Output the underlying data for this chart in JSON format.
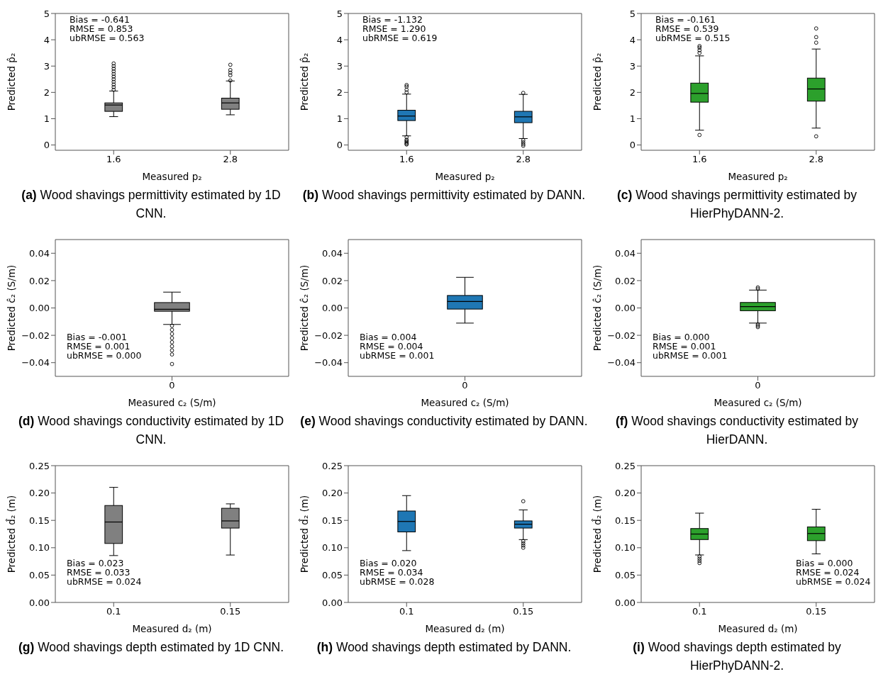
{
  "chart_data": [
    {
      "type": "box",
      "title": "(a) Wood shavings permittivity estimated by 1D CNN.",
      "xlabel": "Measured p₂",
      "ylabel": "Predicted p̂₂",
      "categories": [
        "1.6",
        "2.8"
      ],
      "color": "#808080",
      "ylim": [
        -0.2,
        5
      ],
      "yticks": [
        0,
        1,
        2,
        3,
        4,
        5
      ],
      "boxes": [
        {
          "low": 1.08,
          "q1": 1.28,
          "median": 1.52,
          "q3": 1.6,
          "high": 2.05,
          "outliers": [
            2.1,
            2.2,
            2.3,
            2.4,
            2.5,
            2.6,
            2.7,
            2.8,
            2.9,
            3.0,
            3.1
          ]
        },
        {
          "low": 1.15,
          "q1": 1.36,
          "median": 1.6,
          "q3": 1.78,
          "high": 2.43,
          "outliers": [
            2.45,
            2.65,
            2.75,
            2.85,
            3.05
          ]
        }
      ],
      "annotations": [
        "Bias = -0.641",
        "RMSE = 0.853",
        "ubRMSE = 0.563"
      ]
    },
    {
      "type": "box",
      "title": "(b) Wood shavings permittivity estimated by DANN.",
      "xlabel": "Measured p₂",
      "ylabel": "Predicted p̂₂",
      "categories": [
        "1.6",
        "2.8"
      ],
      "color": "#1f77b4",
      "ylim": [
        -0.2,
        5
      ],
      "yticks": [
        0,
        1,
        2,
        3,
        4,
        5
      ],
      "boxes": [
        {
          "low": 0.35,
          "q1": 0.93,
          "median": 1.1,
          "q3": 1.32,
          "high": 1.93,
          "outliers": [
            2.0,
            2.1,
            2.22,
            2.28,
            0.3,
            0.2,
            0.15,
            0.1,
            0.05,
            0.02
          ]
        },
        {
          "low": 0.25,
          "q1": 0.85,
          "median": 1.07,
          "q3": 1.28,
          "high": 1.92,
          "outliers": [
            1.98,
            0.18,
            0.1,
            0.03,
            -0.03
          ]
        }
      ],
      "annotations": [
        "Bias = -1.132",
        "RMSE = 1.290",
        "ubRMSE = 0.619"
      ]
    },
    {
      "type": "box",
      "title": "(c) Wood shavings permittivity estimated by HierPhyDANN-2.",
      "xlabel": "Measured p₂",
      "ylabel": "Predicted p̂₂",
      "categories": [
        "1.6",
        "2.8"
      ],
      "color": "#2ca02c",
      "ylim": [
        -0.2,
        5
      ],
      "yticks": [
        0,
        1,
        2,
        3,
        4,
        5
      ],
      "boxes": [
        {
          "low": 0.57,
          "q1": 1.63,
          "median": 1.96,
          "q3": 2.35,
          "high": 3.38,
          "outliers": [
            3.5,
            3.6,
            3.7,
            3.76,
            0.38
          ]
        },
        {
          "low": 0.65,
          "q1": 1.67,
          "median": 2.13,
          "q3": 2.54,
          "high": 3.64,
          "outliers": [
            3.89,
            4.1,
            4.43,
            0.33
          ]
        }
      ],
      "annotations": [
        "Bias = -0.161",
        "RMSE = 0.539",
        "ubRMSE = 0.515"
      ]
    },
    {
      "type": "box",
      "title": "(d) Wood shavings conductivity estimated by 1D CNN.",
      "xlabel": "Measured c₂ (S/m)",
      "ylabel": "Predicted ĉ₂ (S/m)",
      "categories": [
        "0"
      ],
      "color": "#808080",
      "ylim": [
        -0.05,
        0.05
      ],
      "yticks": [
        {
          "value": -0.04,
          "label": "−0.04"
        },
        {
          "value": -0.02,
          "label": "−0.02"
        },
        {
          "value": 0,
          "label": "0.00"
        },
        {
          "value": 0.02,
          "label": "0.02"
        },
        {
          "value": 0.04,
          "label": "0.04"
        }
      ],
      "boxes": [
        {
          "low": -0.012,
          "q1": -0.0024,
          "median": -0.001,
          "q3": 0.0039,
          "high": 0.0115,
          "outliers": [
            -0.013,
            -0.016,
            -0.019,
            -0.022,
            -0.025,
            -0.028,
            -0.031,
            -0.034,
            -0.041
          ]
        }
      ],
      "annotations": [
        "Bias = -0.001",
        "RMSE = 0.001",
        "ubRMSE = 0.000"
      ]
    },
    {
      "type": "box",
      "title": "(e) Wood shavings conductivity estimated by DANN.",
      "xlabel": "Measured c₂ (S/m)",
      "ylabel": "Predicted ĉ₂ (S/m)",
      "categories": [
        "0"
      ],
      "color": "#1f77b4",
      "ylim": [
        -0.05,
        0.05
      ],
      "yticks": [
        {
          "value": -0.04,
          "label": "−0.04"
        },
        {
          "value": -0.02,
          "label": "−0.02"
        },
        {
          "value": 0,
          "label": "0.00"
        },
        {
          "value": 0.02,
          "label": "0.02"
        },
        {
          "value": 0.04,
          "label": "0.04"
        }
      ],
      "boxes": [
        {
          "low": -0.011,
          "q1": -0.0008,
          "median": 0.0047,
          "q3": 0.0091,
          "high": 0.0223
        }
      ],
      "annotations": [
        "Bias = 0.004",
        "RMSE = 0.004",
        "ubRMSE = 0.001"
      ]
    },
    {
      "type": "box",
      "title": "(f) Wood shavings conductivity estimated by HierDANN.",
      "xlabel": "Measured c₂ (S/m)",
      "ylabel": "Predicted ĉ₂ (S/m)",
      "categories": [
        "0"
      ],
      "color": "#2ca02c",
      "ylim": [
        -0.05,
        0.05
      ],
      "yticks": [
        {
          "value": -0.04,
          "label": "−0.04"
        },
        {
          "value": -0.02,
          "label": "−0.02"
        },
        {
          "value": 0,
          "label": "0.00"
        },
        {
          "value": 0.02,
          "label": "0.02"
        },
        {
          "value": 0.04,
          "label": "0.04"
        }
      ],
      "boxes": [
        {
          "low": -0.011,
          "q1": -0.002,
          "median": 0.001,
          "q3": 0.004,
          "high": 0.013,
          "outliers": [
            0.014,
            0.015,
            -0.012,
            -0.013,
            -0.014
          ]
        }
      ],
      "annotations": [
        "Bias = 0.000",
        "RMSE = 0.001",
        "ubRMSE = 0.001"
      ]
    },
    {
      "type": "box",
      "title": "(g) Wood shavings depth estimated by 1D CNN.",
      "xlabel": "Measured d₂ (m)",
      "ylabel": "Predicted d̂₂ (m)",
      "categories": [
        "0.1",
        "0.15"
      ],
      "color": "#808080",
      "ylim": [
        0,
        0.25
      ],
      "yticks": [
        {
          "value": 0,
          "label": "0.00"
        },
        {
          "value": 0.05,
          "label": "0.05"
        },
        {
          "value": 0.1,
          "label": "0.10"
        },
        {
          "value": 0.15,
          "label": "0.15"
        },
        {
          "value": 0.2,
          "label": "0.20"
        },
        {
          "value": 0.25,
          "label": "0.25"
        }
      ],
      "boxes": [
        {
          "low": 0.086,
          "q1": 0.108,
          "median": 0.147,
          "q3": 0.177,
          "high": 0.21
        },
        {
          "low": 0.087,
          "q1": 0.136,
          "median": 0.149,
          "q3": 0.172,
          "high": 0.18
        }
      ],
      "annotations": [
        "Bias = 0.023",
        "RMSE = 0.033",
        "ubRMSE = 0.024"
      ]
    },
    {
      "type": "box",
      "title": "(h) Wood shavings depth estimated by DANN.",
      "xlabel": "Measured d₂ (m)",
      "ylabel": "Predicted d̂₂ (m)",
      "categories": [
        "0.1",
        "0.15"
      ],
      "color": "#1f77b4",
      "ylim": [
        0,
        0.25
      ],
      "yticks": [
        {
          "value": 0,
          "label": "0.00"
        },
        {
          "value": 0.05,
          "label": "0.05"
        },
        {
          "value": 0.1,
          "label": "0.10"
        },
        {
          "value": 0.15,
          "label": "0.15"
        },
        {
          "value": 0.2,
          "label": "0.20"
        },
        {
          "value": 0.25,
          "label": "0.25"
        }
      ],
      "boxes": [
        {
          "low": 0.095,
          "q1": 0.129,
          "median": 0.148,
          "q3": 0.167,
          "high": 0.195
        },
        {
          "low": 0.115,
          "q1": 0.136,
          "median": 0.143,
          "q3": 0.149,
          "high": 0.169,
          "outliers": [
            0.185,
            0.112,
            0.108,
            0.104,
            0.1
          ]
        }
      ],
      "annotations": [
        "Bias = 0.020",
        "RMSE = 0.034",
        "ubRMSE = 0.028"
      ]
    },
    {
      "type": "box",
      "title": "(i) Wood shavings depth estimated by HierPhyDANN-2.",
      "xlabel": "Measured d₂ (m)",
      "ylabel": "Predicted d̂₂ (m)",
      "categories": [
        "0.1",
        "0.15"
      ],
      "color": "#2ca02c",
      "ylim": [
        0,
        0.25
      ],
      "yticks": [
        {
          "value": 0,
          "label": "0.00"
        },
        {
          "value": 0.05,
          "label": "0.05"
        },
        {
          "value": 0.1,
          "label": "0.10"
        },
        {
          "value": 0.15,
          "label": "0.15"
        },
        {
          "value": 0.2,
          "label": "0.20"
        },
        {
          "value": 0.25,
          "label": "0.25"
        }
      ],
      "boxes": [
        {
          "low": 0.087,
          "q1": 0.115,
          "median": 0.125,
          "q3": 0.135,
          "high": 0.163,
          "outliers": [
            0.084,
            0.08,
            0.076,
            0.072
          ]
        },
        {
          "low": 0.089,
          "q1": 0.113,
          "median": 0.126,
          "q3": 0.138,
          "high": 0.17
        }
      ],
      "annotations": [
        "Bias = 0.000",
        "RMSE = 0.024",
        "ubRMSE = 0.024"
      ]
    }
  ]
}
